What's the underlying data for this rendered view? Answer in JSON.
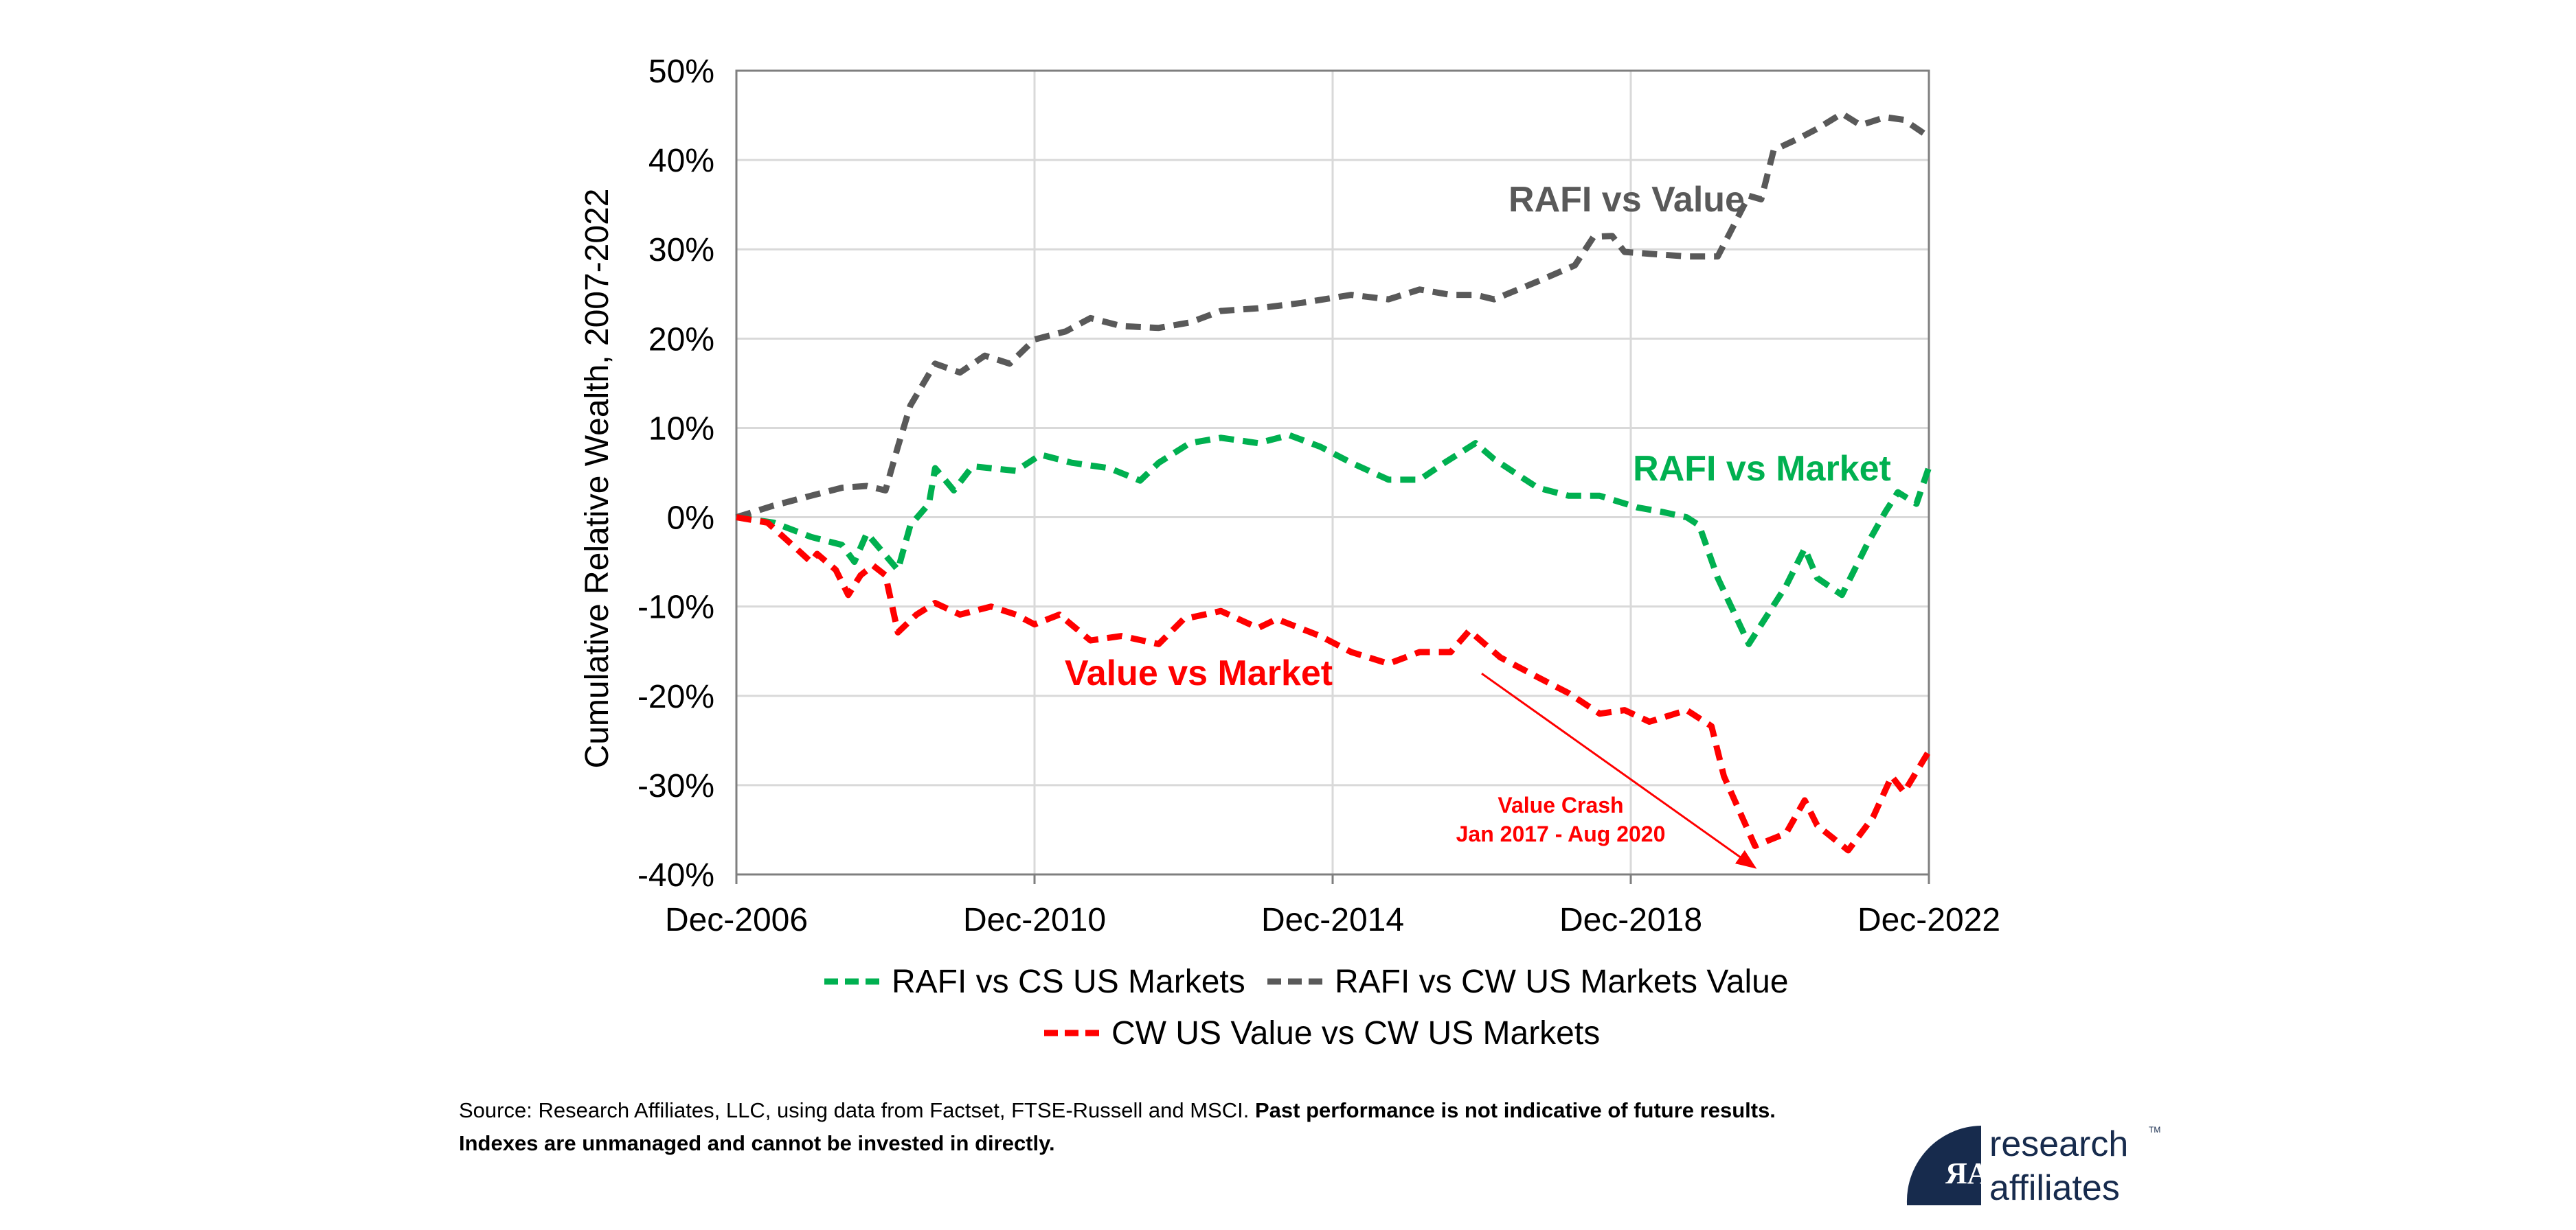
{
  "chart_data": {
    "type": "line",
    "ylabel": "Cumulative Relative Wealth, 2007-2022",
    "xlabel": "",
    "x_ticks": [
      "Dec-2006",
      "Dec-2010",
      "Dec-2014",
      "Dec-2018",
      "Dec-2022"
    ],
    "x_range": [
      "2006-12",
      "2022-12"
    ],
    "y_ticks": [
      "50%",
      "40%",
      "30%",
      "20%",
      "10%",
      "0%",
      "-10%",
      "-20%",
      "-30%",
      "-40%"
    ],
    "ylim": [
      -40,
      50
    ],
    "y_unit": "%",
    "grid": true,
    "legend_placement": "bottom",
    "series": [
      {
        "name": "RAFI vs CS US Markets",
        "color": "#00B050",
        "style": "dashed",
        "points": [
          [
            "2006-12",
            0
          ],
          [
            "2007-06",
            -0.6
          ],
          [
            "2007-12",
            -2.2
          ],
          [
            "2008-05",
            -3.1
          ],
          [
            "2008-07",
            -5.0
          ],
          [
            "2008-09",
            -1.8
          ],
          [
            "2009-02",
            -5.9
          ],
          [
            "2009-04",
            -0.9
          ],
          [
            "2009-07",
            1.5
          ],
          [
            "2009-08",
            5.5
          ],
          [
            "2009-11",
            3.0
          ],
          [
            "2010-02",
            5.7
          ],
          [
            "2010-09",
            5.2
          ],
          [
            "2011-01",
            7.0
          ],
          [
            "2011-06",
            6.1
          ],
          [
            "2011-12",
            5.5
          ],
          [
            "2012-05",
            4.1
          ],
          [
            "2012-08",
            6.1
          ],
          [
            "2013-01",
            8.3
          ],
          [
            "2013-06",
            8.9
          ],
          [
            "2013-12",
            8.3
          ],
          [
            "2014-05",
            9.2
          ],
          [
            "2014-10",
            7.9
          ],
          [
            "2015-03",
            6.1
          ],
          [
            "2015-09",
            4.2
          ],
          [
            "2016-02",
            4.2
          ],
          [
            "2016-06",
            6.1
          ],
          [
            "2016-11",
            8.3
          ],
          [
            "2017-02",
            6.5
          ],
          [
            "2017-09",
            3.3
          ],
          [
            "2018-02",
            2.4
          ],
          [
            "2018-07",
            2.4
          ],
          [
            "2019-01",
            1.1
          ],
          [
            "2019-05",
            0.6
          ],
          [
            "2019-09",
            0
          ],
          [
            "2019-11",
            -0.9
          ],
          [
            "2020-02",
            -6.8
          ],
          [
            "2020-07",
            -14.2
          ],
          [
            "2021-01",
            -7.7
          ],
          [
            "2021-04",
            -3.5
          ],
          [
            "2021-06",
            -6.8
          ],
          [
            "2021-10",
            -8.7
          ],
          [
            "2022-02",
            -3.1
          ],
          [
            "2022-05",
            0.6
          ],
          [
            "2022-07",
            2.8
          ],
          [
            "2022-10",
            1.5
          ],
          [
            "2022-12",
            5.6
          ]
        ]
      },
      {
        "name": "RAFI vs CW US Markets Value",
        "color": "#595959",
        "style": "dashed",
        "points": [
          [
            "2006-12",
            0
          ],
          [
            "2007-06",
            1.3
          ],
          [
            "2007-12",
            2.4
          ],
          [
            "2008-05",
            3.3
          ],
          [
            "2008-09",
            3.5
          ],
          [
            "2008-12",
            3.0
          ],
          [
            "2009-02",
            7.9
          ],
          [
            "2009-04",
            12.5
          ],
          [
            "2009-08",
            17.2
          ],
          [
            "2009-12",
            16.2
          ],
          [
            "2010-04",
            18.1
          ],
          [
            "2010-08",
            17.2
          ],
          [
            "2010-12",
            19.9
          ],
          [
            "2011-05",
            20.8
          ],
          [
            "2011-09",
            22.3
          ],
          [
            "2012-02",
            21.4
          ],
          [
            "2012-08",
            21.2
          ],
          [
            "2013-01",
            21.8
          ],
          [
            "2013-06",
            23.1
          ],
          [
            "2013-12",
            23.4
          ],
          [
            "2014-07",
            24.0
          ],
          [
            "2015-03",
            24.9
          ],
          [
            "2015-09",
            24.4
          ],
          [
            "2016-02",
            25.5
          ],
          [
            "2016-07",
            24.9
          ],
          [
            "2016-11",
            24.9
          ],
          [
            "2017-02",
            24.4
          ],
          [
            "2017-09",
            26.4
          ],
          [
            "2018-03",
            28.2
          ],
          [
            "2018-06",
            31.4
          ],
          [
            "2018-09",
            31.5
          ],
          [
            "2018-11",
            29.7
          ],
          [
            "2019-03",
            29.5
          ],
          [
            "2019-09",
            29.2
          ],
          [
            "2020-02",
            29.2
          ],
          [
            "2020-04",
            31.9
          ],
          [
            "2020-07",
            36.0
          ],
          [
            "2020-09",
            35.6
          ],
          [
            "2020-11",
            41.1
          ],
          [
            "2021-03",
            42.4
          ],
          [
            "2021-06",
            43.5
          ],
          [
            "2021-10",
            45.2
          ],
          [
            "2022-01",
            43.9
          ],
          [
            "2022-05",
            44.8
          ],
          [
            "2022-08",
            44.5
          ],
          [
            "2022-12",
            42.6
          ]
        ]
      },
      {
        "name": "CW US Value vs CW US Markets",
        "color": "#FF0000",
        "style": "dashed",
        "points": [
          [
            "2006-12",
            0
          ],
          [
            "2007-05",
            -0.6
          ],
          [
            "2007-09",
            -3.1
          ],
          [
            "2007-12",
            -5.0
          ],
          [
            "2008-01",
            -4.1
          ],
          [
            "2008-04",
            -5.9
          ],
          [
            "2008-06",
            -8.7
          ],
          [
            "2008-08",
            -6.5
          ],
          [
            "2008-10",
            -5.4
          ],
          [
            "2008-12",
            -6.5
          ],
          [
            "2009-02",
            -12.9
          ],
          [
            "2009-05",
            -10.9
          ],
          [
            "2009-08",
            -9.6
          ],
          [
            "2009-12",
            -10.9
          ],
          [
            "2010-05",
            -10.0
          ],
          [
            "2010-09",
            -10.9
          ],
          [
            "2010-12",
            -12.0
          ],
          [
            "2011-04",
            -10.9
          ],
          [
            "2011-09",
            -13.8
          ],
          [
            "2012-02",
            -13.3
          ],
          [
            "2012-08",
            -14.2
          ],
          [
            "2012-12",
            -11.4
          ],
          [
            "2013-06",
            -10.5
          ],
          [
            "2013-12",
            -12.4
          ],
          [
            "2014-03",
            -11.4
          ],
          [
            "2014-10",
            -13.3
          ],
          [
            "2015-03",
            -15.1
          ],
          [
            "2015-09",
            -16.4
          ],
          [
            "2016-02",
            -15.1
          ],
          [
            "2016-07",
            -15.1
          ],
          [
            "2016-10",
            -12.7
          ],
          [
            "2017-03",
            -15.7
          ],
          [
            "2017-09",
            -17.9
          ],
          [
            "2018-02",
            -19.7
          ],
          [
            "2018-07",
            -22.0
          ],
          [
            "2018-11",
            -21.6
          ],
          [
            "2019-03",
            -22.9
          ],
          [
            "2019-09",
            -21.6
          ],
          [
            "2020-01",
            -23.4
          ],
          [
            "2020-03",
            -29.0
          ],
          [
            "2020-08",
            -36.8
          ],
          [
            "2021-01",
            -35.4
          ],
          [
            "2021-04",
            -31.7
          ],
          [
            "2021-06",
            -34.5
          ],
          [
            "2021-11",
            -37.3
          ],
          [
            "2022-03",
            -33.6
          ],
          [
            "2022-06",
            -29.0
          ],
          [
            "2022-08",
            -30.8
          ],
          [
            "2022-12",
            -26.2
          ]
        ]
      }
    ],
    "annotations": {
      "rafi_vs_value": "RAFI vs Value",
      "rafi_vs_market": "RAFI vs Market",
      "value_vs_market": "Value vs Market",
      "crash_title": "Value Crash",
      "crash_period": "Jan 2017 - Aug 2020",
      "crash_arrow": {
        "from": [
          "2016-12",
          -17.5
        ],
        "to": [
          "2020-08",
          -40
        ]
      }
    }
  },
  "footer": {
    "source_regular": "Source: Research Affiliates, LLC, using data from Factset, FTSE-Russell and MSCI. ",
    "source_bold": "Past performance is not indicative of future results.",
    "line2_bold": "Indexes are unmanaged and cannot be invested in directly."
  },
  "logo": {
    "line1": "research",
    "line2": "affiliates",
    "tm": "TM",
    "color": "#172B4D"
  }
}
